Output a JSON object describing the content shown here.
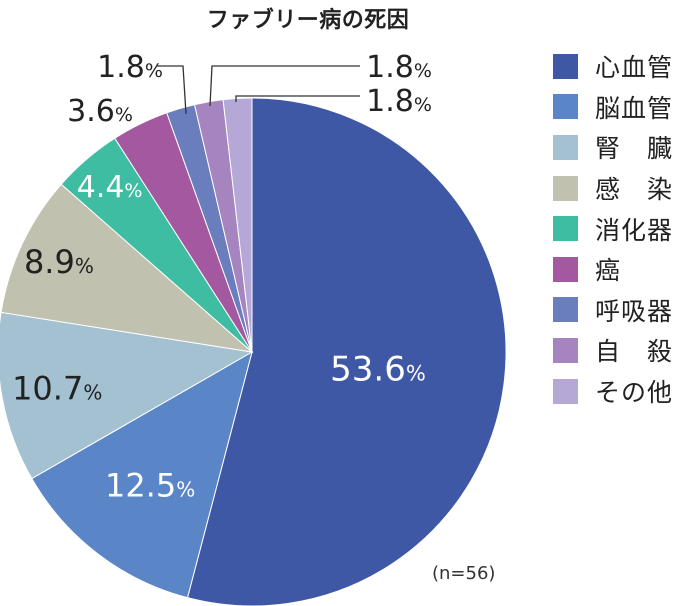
{
  "chart_data": {
    "type": "pie",
    "title": "ファブリー病の死因",
    "note": "(n=56)",
    "unit": "%",
    "legend_position": "right",
    "slices": [
      {
        "label": "心血管",
        "value": 53.6,
        "color": "#3f58a6"
      },
      {
        "label": "脳血管",
        "value": 12.5,
        "color": "#5a85c6"
      },
      {
        "label": "腎　臓",
        "value": 10.7,
        "color": "#a3c1d1"
      },
      {
        "label": "感　染",
        "value": 8.9,
        "color": "#c0c1af"
      },
      {
        "label": "消化器",
        "value": 4.4,
        "color": "#3fbda3"
      },
      {
        "label": "癌",
        "value": 3.6,
        "color": "#a4589f"
      },
      {
        "label": "呼吸器",
        "value": 1.8,
        "color": "#6a7ebe"
      },
      {
        "label": "自　殺",
        "value": 1.8,
        "color": "#a584bf"
      },
      {
        "label": "その他",
        "value": 1.8,
        "color": "#b6a8d6"
      }
    ]
  }
}
